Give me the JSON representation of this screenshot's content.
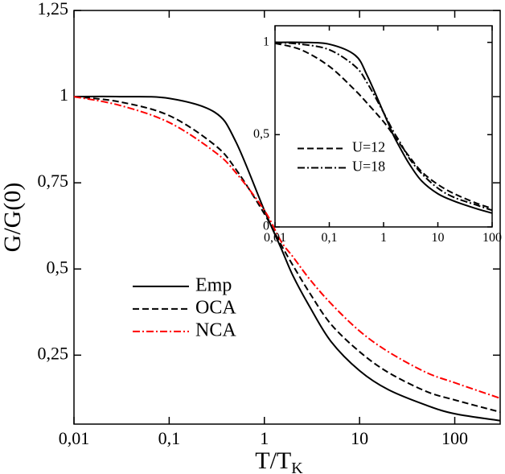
{
  "chart_data": [
    {
      "type": "line",
      "xscale": "log",
      "ylabel": "G/G(0)",
      "xlabel": "T/T",
      "xlabel_subscript": "K",
      "xlim": [
        0.01,
        300
      ],
      "ylim": [
        0.05,
        1.25
      ],
      "xticks": [
        {
          "value": 0.01,
          "label": "0,01"
        },
        {
          "value": 0.1,
          "label": "0,1"
        },
        1,
        10,
        100
      ],
      "yticks": [
        {
          "value": 0.25,
          "label": "0,25"
        },
        {
          "value": 0.5,
          "label": "0,5"
        },
        {
          "value": 0.75,
          "label": "0,75"
        },
        1,
        {
          "value": 1.25,
          "label": "1,25"
        }
      ],
      "legend": "center left",
      "x": [
        0.01,
        0.03,
        0.1,
        0.3,
        0.5,
        1,
        1.5,
        2,
        3,
        5,
        10,
        20,
        50,
        100,
        300
      ],
      "series": [
        {
          "name": "Emp",
          "color": "#000000",
          "dash": "solid",
          "values": [
            1.0,
            1.0,
            0.995,
            0.955,
            0.87,
            0.67,
            0.56,
            0.48,
            0.39,
            0.29,
            0.205,
            0.15,
            0.105,
            0.08,
            0.06
          ]
        },
        {
          "name": "OCA",
          "color": "#000000",
          "dash": "dashed",
          "values": [
            1.0,
            0.985,
            0.945,
            0.86,
            0.79,
            0.66,
            0.57,
            0.51,
            0.43,
            0.34,
            0.26,
            0.2,
            0.145,
            0.12,
            0.085
          ]
        },
        {
          "name": "NCA",
          "color": "#ff0000",
          "dash": "dashdot",
          "values": [
            1.0,
            0.975,
            0.925,
            0.84,
            0.78,
            0.67,
            0.58,
            0.535,
            0.47,
            0.4,
            0.32,
            0.26,
            0.2,
            0.17,
            0.125
          ]
        }
      ]
    },
    {
      "type": "line",
      "xscale": "log",
      "xlim": [
        0.01,
        100
      ],
      "ylim": [
        0,
        1.09
      ],
      "xticks": [
        {
          "value": 0.01,
          "label": "0,01"
        },
        {
          "value": 0.1,
          "label": "0,1"
        },
        1,
        10,
        100
      ],
      "yticks": [
        0,
        {
          "value": 0.5,
          "label": "0,5"
        },
        1
      ],
      "legend": "lower left",
      "x": [
        0.01,
        0.03,
        0.1,
        0.3,
        0.5,
        1,
        1.5,
        2,
        3,
        5,
        10,
        20,
        50,
        100
      ],
      "series": [
        {
          "color": "#000000",
          "dash": "solid",
          "values": [
            1.0,
            1.0,
            0.99,
            0.93,
            0.82,
            0.62,
            0.5,
            0.43,
            0.34,
            0.25,
            0.18,
            0.14,
            0.1,
            0.075
          ]
        },
        {
          "name": "U=12",
          "color": "#000000",
          "dash": "dashed",
          "values": [
            0.995,
            0.96,
            0.87,
            0.74,
            0.67,
            0.57,
            0.5,
            0.45,
            0.38,
            0.3,
            0.23,
            0.18,
            0.13,
            0.1
          ]
        },
        {
          "name": "U=18",
          "color": "#000000",
          "dash": "dashdot",
          "values": [
            1.0,
            0.99,
            0.96,
            0.87,
            0.78,
            0.62,
            0.52,
            0.46,
            0.37,
            0.29,
            0.21,
            0.16,
            0.12,
            0.09
          ]
        }
      ]
    }
  ]
}
